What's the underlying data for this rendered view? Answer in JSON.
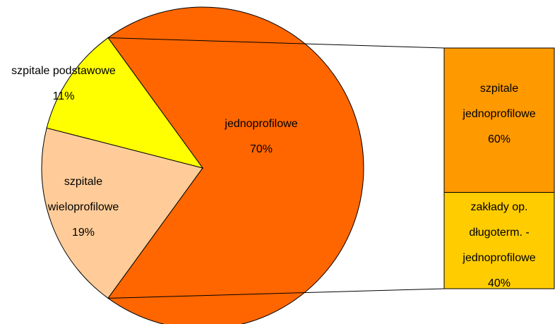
{
  "chart_data": {
    "type": "bar-of-pie",
    "pie": {
      "slices": [
        {
          "label_lines": [
            "jednoprofilowe"
          ],
          "value": 70,
          "value_label": "70%",
          "color": "#FF6600"
        },
        {
          "label_lines": [
            "szpitale",
            "wieloprofilowe"
          ],
          "value": 19,
          "value_label": "19%",
          "color": "#FFCC99"
        },
        {
          "label_lines": [
            "szpitale podstawowe"
          ],
          "value": 11,
          "value_label": "11%",
          "color": "#FFFF00"
        }
      ]
    },
    "bar": {
      "breakdown_of": "jednoprofilowe",
      "segments": [
        {
          "label_lines": [
            "szpitale",
            "jednoprofilowe"
          ],
          "value": 60,
          "value_label": "60%",
          "color": "#FF9900"
        },
        {
          "label_lines": [
            "zakłady op.",
            "długoterm. -",
            "jednoprofilowe"
          ],
          "value": 40,
          "value_label": "40%",
          "color": "#FFCC00"
        }
      ]
    },
    "title": "",
    "legend": "none"
  }
}
